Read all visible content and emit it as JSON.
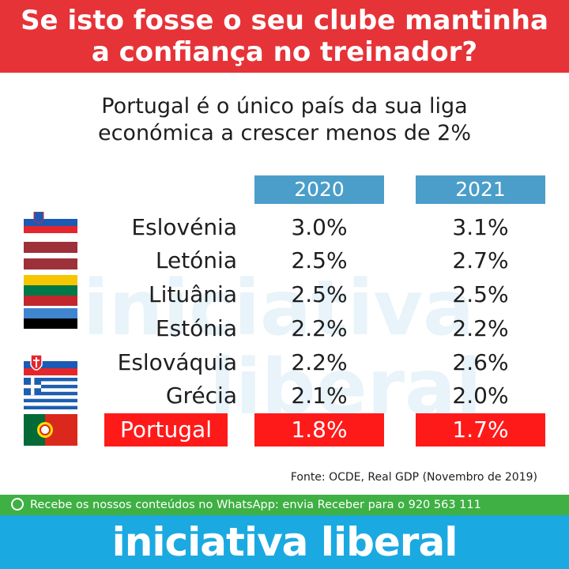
{
  "header": {
    "title_line1": "Se isto fosse o seu clube mantinha",
    "title_line2": "a confiança no treinador?"
  },
  "subtitle": {
    "line1": "Portugal é o único país da sua liga",
    "line2": "económica a crescer menos de 2%"
  },
  "table": {
    "years": [
      "2020",
      "2021"
    ],
    "rows": [
      {
        "country": "Eslovénia",
        "v2020": "3.0%",
        "v2021": "3.1%"
      },
      {
        "country": "Letónia",
        "v2020": "2.5%",
        "v2021": "2.7%"
      },
      {
        "country": "Lituânia",
        "v2020": "2.5%",
        "v2021": "2.5%"
      },
      {
        "country": "Estónia",
        "v2020": "2.2%",
        "v2021": "2.2%"
      },
      {
        "country": "Eslováquia",
        "v2020": "2.2%",
        "v2021": "2.6%"
      },
      {
        "country": "Grécia",
        "v2020": "2.1%",
        "v2021": "2.0%"
      },
      {
        "country": "Portugal",
        "v2020": "1.8%",
        "v2021": "1.7%"
      }
    ]
  },
  "source": "Fonte: OCDE, Real GDP (Novembro de 2019)",
  "whatsapp": {
    "icon": "whatsapp-icon",
    "text": "Recebe os nossos conteúdos no WhatsApp: envia Receber para o 920 563 111"
  },
  "watermark": {
    "line1": "iniciativa",
    "line2": "liberal"
  },
  "footer": {
    "logo": "iniciativa liberal"
  },
  "colors": {
    "banner": "#e63338",
    "year_header": "#4a9ec9",
    "highlight": "#ff1a1a",
    "whatsapp_bar": "#3fb043",
    "footer": "#1ba9e1"
  }
}
